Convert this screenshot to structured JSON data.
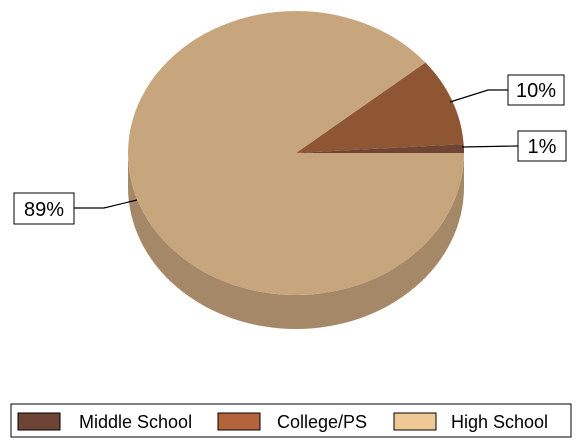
{
  "chart_data": {
    "type": "pie",
    "style": "3d",
    "categories": [
      "Middle School",
      "College/PS",
      "High School"
    ],
    "values": [
      1,
      10,
      89
    ],
    "labels": [
      "1%",
      "10%",
      "89%"
    ],
    "colors": [
      "#6e4535",
      "#8e5632",
      "#c8a67d"
    ],
    "legend_colors": [
      "#6e4535",
      "#b3643a",
      "#f0c896"
    ],
    "legend_position": "bottom"
  }
}
